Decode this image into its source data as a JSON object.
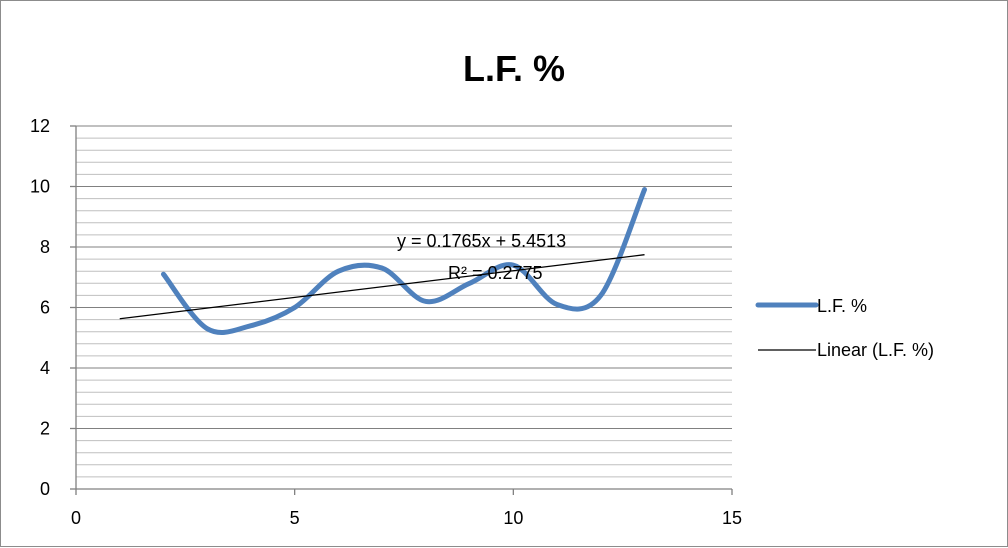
{
  "chart_data": {
    "type": "line",
    "title": "L.F. %",
    "xlabel": "",
    "ylabel": "",
    "xlim": [
      0,
      15
    ],
    "ylim": [
      0,
      12
    ],
    "x_ticks": [
      0,
      5,
      10,
      15
    ],
    "y_ticks": [
      0,
      2,
      4,
      6,
      8,
      10,
      12
    ],
    "grid": true,
    "minor_y_grid_step": 0.4,
    "legend_placement": "right",
    "smoothed": true,
    "series": [
      {
        "name": "L.F. %",
        "color": "#4f81bd",
        "x": [
          2,
          3,
          4,
          5,
          6,
          7,
          8,
          9,
          10,
          11,
          12,
          13
        ],
        "y": [
          7.1,
          5.3,
          5.4,
          6.0,
          7.2,
          7.3,
          6.2,
          6.8,
          7.4,
          6.1,
          6.4,
          9.9
        ]
      }
    ],
    "trendline": {
      "name": "Linear (L.F. %)",
      "color": "#000000",
      "slope": 0.1765,
      "intercept": 5.4513,
      "x_range": [
        1,
        13
      ],
      "equation_label": "y = 0.1765x + 5.4513",
      "r2_label": "R² = 0.2775"
    }
  }
}
